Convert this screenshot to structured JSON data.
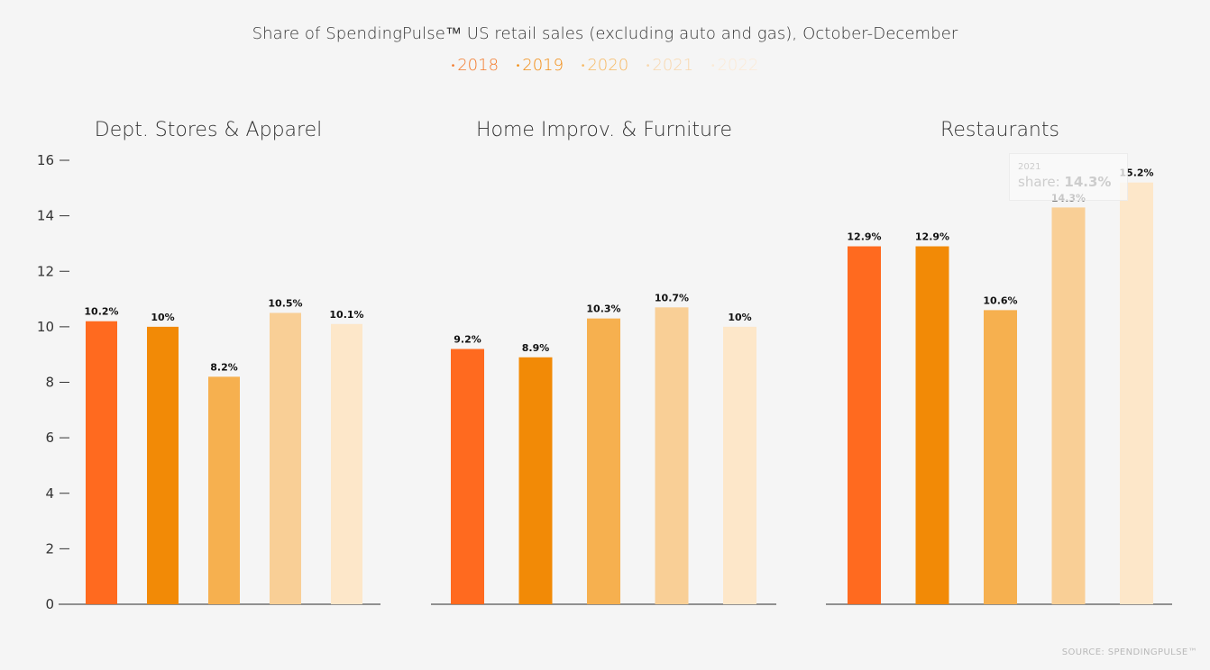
{
  "chart_data": {
    "type": "bar",
    "title": "Share of SpendingPulse™ US retail sales (excluding auto and gas), October-December",
    "legend": [
      "2018",
      "2019",
      "2020",
      "2021",
      "2022"
    ],
    "colors": [
      "#ff6a1f",
      "#f28a06",
      "#f6b04f",
      "#f9cf96",
      "#fde7c9"
    ],
    "legend_colors": [
      "#f37a2b",
      "#f28d14",
      "#f6b963",
      "#f8d7ad",
      "#fbead6"
    ],
    "ylim": [
      0,
      16
    ],
    "yticks": [
      0,
      2,
      4,
      6,
      8,
      10,
      12,
      14,
      16
    ],
    "ytick_labels": [
      "0",
      "2",
      "4",
      "6",
      "8",
      "10",
      "12",
      "14",
      "16"
    ],
    "panels": [
      {
        "title": "Dept. Stores & Apparel",
        "values": [
          10.2,
          10,
          8.2,
          10.5,
          10.1
        ],
        "labels": [
          "10.2%",
          "10%",
          "8.2%",
          "10.5%",
          "10.1%"
        ]
      },
      {
        "title": "Home Improv. & Furniture",
        "values": [
          9.2,
          8.9,
          10.3,
          10.7,
          10
        ],
        "labels": [
          "9.2%",
          "8.9%",
          "10.3%",
          "10.7%",
          "10%"
        ]
      },
      {
        "title": "Restaurants",
        "values": [
          12.9,
          12.9,
          10.6,
          14.3,
          15.2
        ],
        "labels": [
          "12.9%",
          "12.9%",
          "10.6%",
          "14.3%",
          "15.2%"
        ]
      }
    ],
    "source": "SOURCE: SPENDINGPULSE™"
  },
  "tooltip": {
    "year": "2021",
    "label": "share:",
    "value": "14.3%"
  }
}
